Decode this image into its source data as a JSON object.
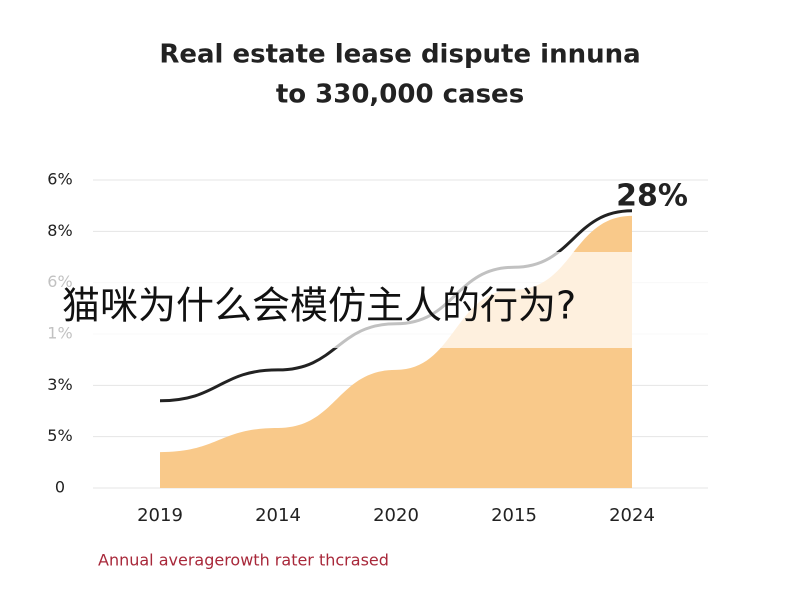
{
  "chart_data": {
    "type": "area-line",
    "title": [
      "Real estate lease dispute innuna",
      "to 330,000 cases"
    ],
    "categories": [
      "2019",
      "2014",
      "2020",
      "2015",
      "2024"
    ],
    "series": [
      {
        "kind": "area",
        "color": "#f9c98a",
        "values": [
          0.7,
          1.17,
          2.3,
          3.86,
          5.3
        ]
      },
      {
        "kind": "line",
        "color": "#222222",
        "values": [
          1.7,
          2.3,
          3.2,
          4.3,
          5.4
        ]
      }
    ],
    "ylim": [
      0,
      6
    ],
    "yticks": [
      {
        "value": 0,
        "label": "0"
      },
      {
        "value": 1,
        "label": "5%"
      },
      {
        "value": 2,
        "label": "3%"
      },
      {
        "value": 3,
        "label": "1%"
      },
      {
        "value": 4,
        "label": "6%"
      },
      {
        "value": 5,
        "label": "8%"
      },
      {
        "value": 6,
        "label": "6%"
      }
    ],
    "grid": true,
    "annotation": "28%",
    "caption": "Annual averagerowth rater thcrased",
    "overlay_text": "猫咪为什么会模仿主人的行为?"
  }
}
